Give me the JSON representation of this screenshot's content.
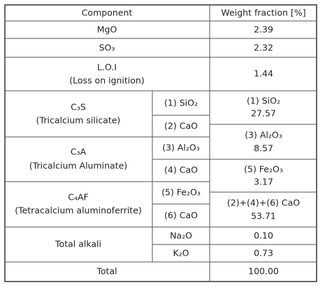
{
  "table": {
    "header": [
      "Component",
      "Weight fraction [%]"
    ],
    "simple_rows": [
      [
        "MgO",
        "2.39"
      ],
      [
        "SO₃",
        "2.32"
      ]
    ],
    "loi": {
      "name": "L.O.I",
      "description": "(Loss on ignition)",
      "value": "1.44"
    },
    "phases": [
      {
        "name": "C₃S",
        "description": "(Tricalcium silicate)",
        "oxides": [
          "(1) SiO₂",
          "(2) CaO"
        ]
      },
      {
        "name": "C₃A",
        "description": "(Tricalcium Aluminate)",
        "oxides": [
          "(3) Al₂O₃",
          "(4) CaO"
        ]
      },
      {
        "name": "C₄AF",
        "description": "(Tetracalcium aluminoferrite)",
        "oxides": [
          "(5) Fe₂O₃",
          "(6) CaO"
        ]
      }
    ],
    "oxide_totals": [
      {
        "label": "(1) SiO₂",
        "value": "27.57"
      },
      {
        "label": "(3) Al₂O₃",
        "value": "8.57"
      },
      {
        "label": "(5) Fe₂O₃",
        "value": "3.17"
      },
      {
        "label": "(2)+(4)+(6) CaO",
        "value": "53.71"
      }
    ],
    "alkali": {
      "name": "Total alkali",
      "items": [
        [
          "Na₂O",
          "0.10"
        ],
        [
          "K₂O",
          "0.73"
        ]
      ]
    },
    "total": [
      "Total",
      "100.00"
    ]
  }
}
